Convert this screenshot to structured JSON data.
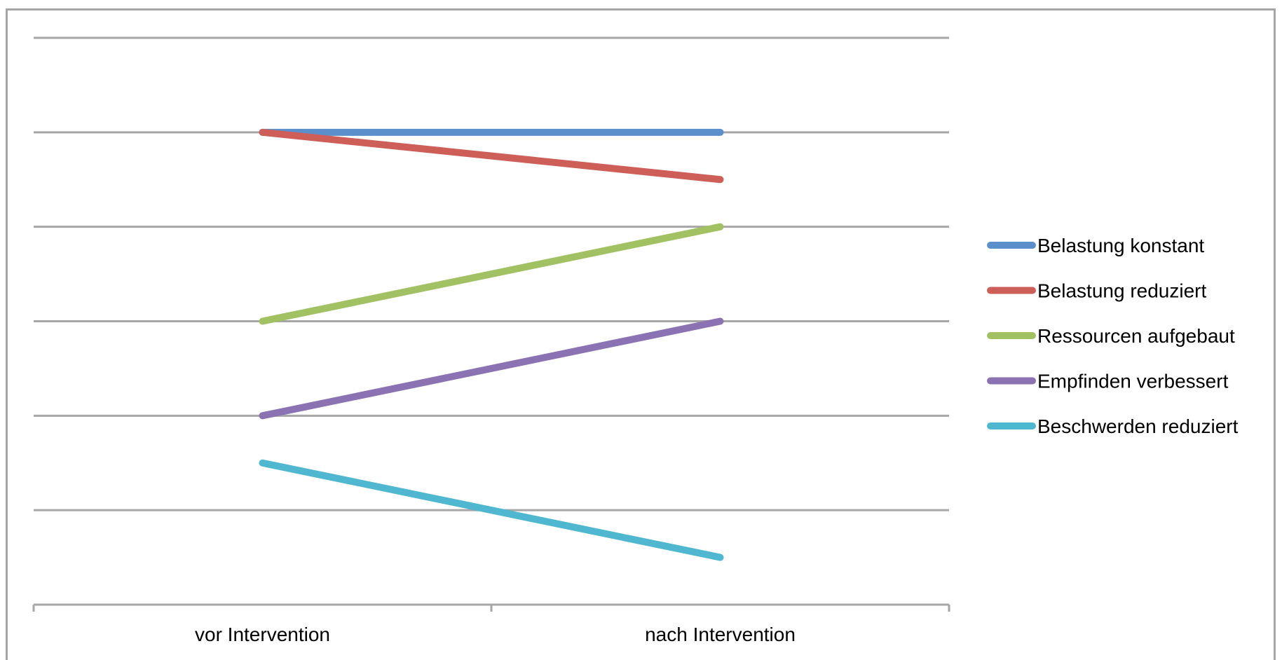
{
  "chart_data": {
    "type": "line",
    "title": "",
    "xlabel": "",
    "ylabel": "",
    "categories": [
      "vor Intervention",
      "nach Intervention"
    ],
    "ylim": [
      0,
      6
    ],
    "grid": true,
    "legend_position": "right",
    "series": [
      {
        "name": "Belastung konstant",
        "values": [
          5,
          5
        ],
        "color": "#5b8fcc"
      },
      {
        "name": "Belastung reduziert",
        "values": [
          5,
          4.5
        ],
        "color": "#cd5f58"
      },
      {
        "name": "Ressourcen aufgebaut",
        "values": [
          3,
          4
        ],
        "color": "#a2c163"
      },
      {
        "name": "Empfinden verbessert",
        "values": [
          2,
          3
        ],
        "color": "#8b72b2"
      },
      {
        "name": "Beschwerden reduziert",
        "values": [
          1.5,
          0.5
        ],
        "color": "#4fb7cf"
      }
    ]
  }
}
